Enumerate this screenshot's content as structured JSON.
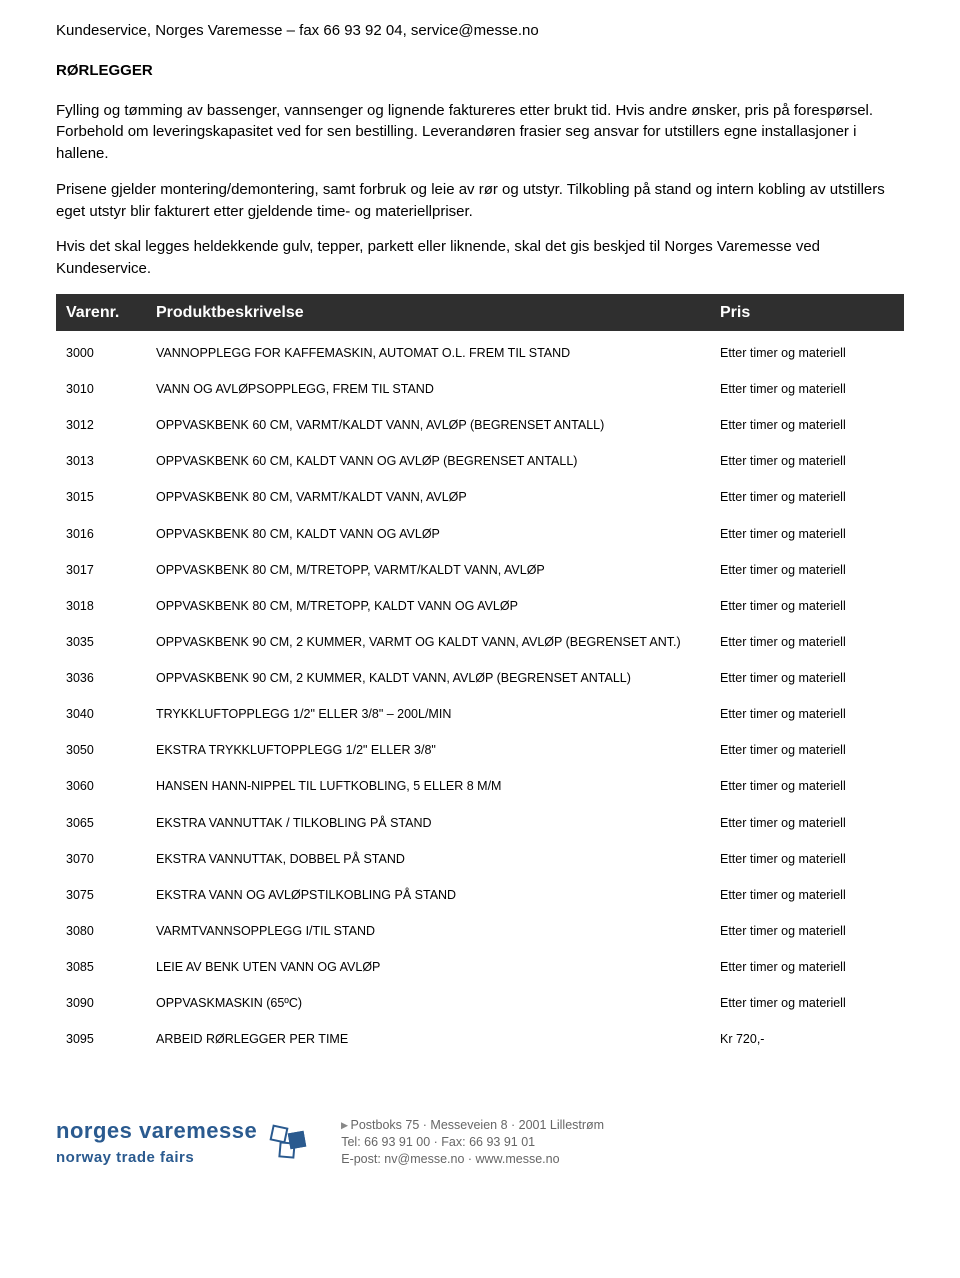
{
  "header": {
    "top_line": "Kundeservice, Norges Varemesse – fax 66 93 92 04, service@messe.no",
    "section_title": "RØRLEGGER"
  },
  "paragraphs": {
    "p1": "Fylling og tømming av bassenger, vannsenger og lignende faktureres etter brukt tid. Hvis andre ønsker, pris på forespørsel. Forbehold om leveringskapasitet ved for sen bestilling. Leverandøren frasier seg ansvar for utstillers egne installasjoner i hallene.",
    "p2": "Prisene gjelder montering/demontering, samt forbruk og leie av rør og utstyr. Tilkobling på stand og intern kobling av utstillers eget utstyr blir fakturert etter gjeldende time- og materiellpriser.",
    "p3": "Hvis det skal legges heldekkende gulv, tepper, parkett eller liknende, skal det gis beskjed til Norges Varemesse ved Kundeservice."
  },
  "table": {
    "header_bg": "#2f2f2f",
    "header_fg": "#ffffff",
    "columns": {
      "varenr": "Varenr.",
      "desc": "Produktbeskrivelse",
      "pris": "Pris"
    },
    "rows": [
      {
        "varenr": "3000",
        "desc": "VANNOPPLEGG FOR KAFFEMASKIN, AUTOMAT O.L. FREM TIL STAND",
        "pris": "Etter timer og materiell"
      },
      {
        "varenr": "3010",
        "desc": "VANN OG AVLØPSOPPLEGG, FREM TIL STAND",
        "pris": "Etter timer og materiell"
      },
      {
        "varenr": "3012",
        "desc": "OPPVASKBENK 60 CM, VARMT/KALDT VANN, AVLØP (BEGRENSET ANTALL)",
        "pris": "Etter timer og materiell"
      },
      {
        "varenr": "3013",
        "desc": "OPPVASKBENK 60 CM, KALDT VANN OG AVLØP (BEGRENSET ANTALL)",
        "pris": "Etter timer og materiell"
      },
      {
        "varenr": "3015",
        "desc": "OPPVASKBENK 80 CM, VARMT/KALDT VANN, AVLØP",
        "pris": "Etter timer og materiell"
      },
      {
        "varenr": "3016",
        "desc": "OPPVASKBENK 80 CM, KALDT VANN OG AVLØP",
        "pris": "Etter timer og materiell"
      },
      {
        "varenr": "3017",
        "desc": "OPPVASKBENK 80 CM, M/TRETOPP, VARMT/KALDT VANN, AVLØP",
        "pris": "Etter timer og materiell"
      },
      {
        "varenr": "3018",
        "desc": "OPPVASKBENK 80 CM, M/TRETOPP, KALDT VANN OG AVLØP",
        "pris": "Etter timer og materiell"
      },
      {
        "varenr": "3035",
        "desc": "OPPVASKBENK 90 CM, 2 KUMMER, VARMT OG KALDT VANN, AVLØP (BEGRENSET ANT.)",
        "pris": "Etter timer og materiell"
      },
      {
        "varenr": "3036",
        "desc": "OPPVASKBENK 90 CM, 2 KUMMER, KALDT VANN, AVLØP (BEGRENSET ANTALL)",
        "pris": "Etter timer og materiell"
      },
      {
        "varenr": "3040",
        "desc": "TRYKKLUFTOPPLEGG 1/2\" ELLER 3/8\" – 200L/MIN",
        "pris": "Etter timer og materiell"
      },
      {
        "varenr": "3050",
        "desc": "EKSTRA TRYKKLUFTOPPLEGG 1/2\" ELLER 3/8\"",
        "pris": "Etter timer og materiell"
      },
      {
        "varenr": "3060",
        "desc": "HANSEN HANN-NIPPEL TIL LUFTKOBLING, 5 ELLER 8 M/M",
        "pris": "Etter timer og materiell"
      },
      {
        "varenr": "3065",
        "desc": "EKSTRA VANNUTTAK /  TILKOBLING PÅ STAND",
        "pris": "Etter timer og materiell"
      },
      {
        "varenr": "3070",
        "desc": "EKSTRA VANNUTTAK, DOBBEL PÅ STAND",
        "pris": "Etter timer og materiell"
      },
      {
        "varenr": "3075",
        "desc": "EKSTRA VANN OG AVLØPSTILKOBLING PÅ STAND",
        "pris": "Etter timer og materiell"
      },
      {
        "varenr": "3080",
        "desc": "VARMTVANNSOPPLEGG I/TIL STAND",
        "pris": "Etter timer og materiell"
      },
      {
        "varenr": "3085",
        "desc": "LEIE AV BENK UTEN VANN OG AVLØP",
        "pris": "Etter timer og materiell"
      },
      {
        "varenr": "3090",
        "desc": "OPPVASKMASKIN (65ºC)",
        "pris": "Etter timer og materiell"
      },
      {
        "varenr": "3095",
        "desc": "ARBEID RØRLEGGER PER TIME",
        "pris": "Kr    720,-"
      }
    ]
  },
  "footer": {
    "logo_line1": "norges varemesse",
    "logo_line2": "norway trade fairs",
    "info_line1": "Postboks 75 · Messeveien 8 · 2001 Lillestrøm",
    "info_line2": "Tel: 66 93 91 00 · Fax: 66 93 91 01",
    "info_line3": "E-post: nv@messe.no · www.messe.no"
  }
}
